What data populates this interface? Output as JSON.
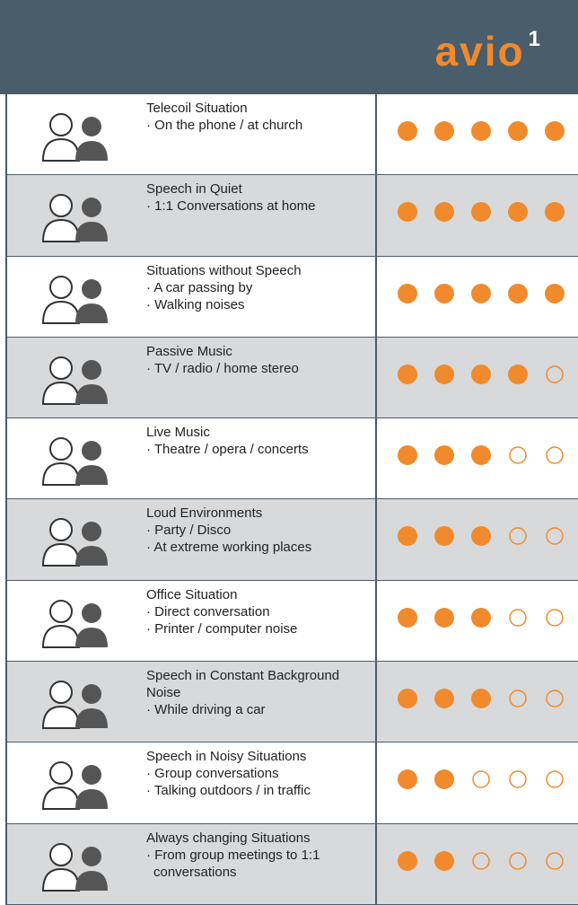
{
  "header": {
    "logo": "avio",
    "logo_sup": "1"
  },
  "rating_scale": 5,
  "rows": [
    {
      "title": "Telecoil Situation",
      "bullets": [
        "· On the phone / at church"
      ],
      "rating": 5
    },
    {
      "title": "Speech in Quiet",
      "bullets": [
        "· 1:1 Conversations at home"
      ],
      "rating": 5
    },
    {
      "title": "Situations without Speech",
      "bullets": [
        "· A car passing by",
        "· Walking noises"
      ],
      "rating": 5
    },
    {
      "title": "Passive Music",
      "bullets": [
        "· TV / radio / home stereo"
      ],
      "rating": 4
    },
    {
      "title": "Live Music",
      "bullets": [
        "· Theatre / opera / concerts"
      ],
      "rating": 3
    },
    {
      "title": "Loud Environments",
      "bullets": [
        "· Party / Disco",
        "· At extreme working places"
      ],
      "rating": 3
    },
    {
      "title": "Office Situation",
      "bullets": [
        "· Direct conversation",
        "· Printer / computer noise"
      ],
      "rating": 3
    },
    {
      "title": "Speech in Constant Background Noise",
      "bullets": [
        "· While driving a car"
      ],
      "rating": 3
    },
    {
      "title": "Speech in Noisy Situations",
      "bullets": [
        "· Group conversations",
        "· Talking outdoors / in traffic"
      ],
      "rating": 2
    },
    {
      "title": "Always changing Situations",
      "bullets": [
        "· From group meetings to 1:1 conversations"
      ],
      "rating": 2
    }
  ]
}
